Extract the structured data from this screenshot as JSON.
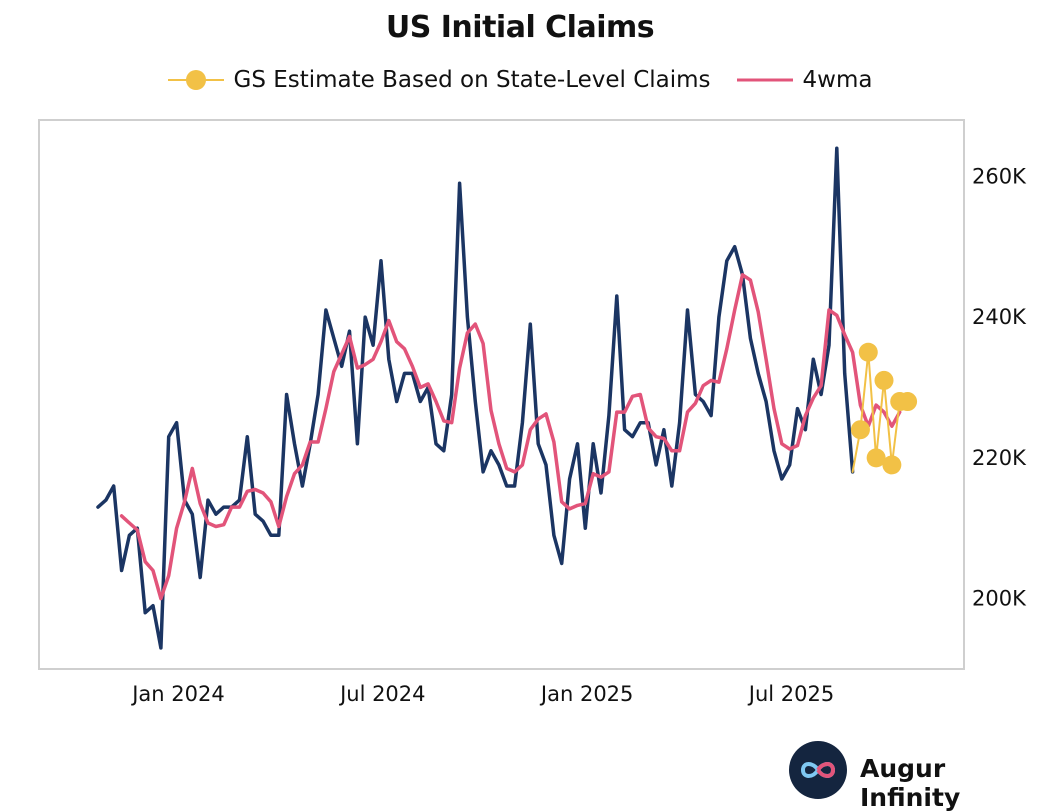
{
  "title": "US Initial Claims",
  "brand": {
    "name": "Augur Infinity",
    "icon": "infinity-logo-icon"
  },
  "chart_data": {
    "type": "line",
    "title": "US Initial Claims",
    "legend": [
      "GS Estimate Based on State-Level Claims",
      "4wma"
    ],
    "legend_placement": "top-center",
    "x_ticks": [
      "Jan 2024",
      "Jul 2024",
      "Jan 2025",
      "Jul 2025"
    ],
    "x_tick_weeks": [
      4,
      30,
      56,
      82
    ],
    "y_ticks": [
      "200K",
      "220K",
      "240K",
      "260K"
    ],
    "y_tick_values": [
      200000,
      220000,
      240000,
      260000
    ],
    "ylim": [
      190000,
      268000
    ],
    "y_axis_side": "right",
    "grid": false,
    "colors": {
      "actual": "#1b3563",
      "wma": "#e2547a",
      "estimate": "#f2c146"
    },
    "week_start": "2023-12-02",
    "series": [
      {
        "role": "actual",
        "color": "#1b3563",
        "values": [
          213000,
          214000,
          216000,
          204000,
          209000,
          210000,
          198000,
          199000,
          193000,
          223000,
          225000,
          214000,
          212000,
          203000,
          214000,
          212000,
          213000,
          213000,
          214000,
          223000,
          212000,
          211000,
          209000,
          209000,
          229000,
          222000,
          216000,
          222000,
          229000,
          241000,
          237000,
          233000,
          238000,
          222000,
          240000,
          236000,
          248000,
          234000,
          228000,
          232000,
          232000,
          228000,
          230000,
          222000,
          221000,
          229000,
          259000,
          240000,
          228000,
          218000,
          221000,
          219000,
          216000,
          216000,
          225000,
          239000,
          222000,
          219000,
          209000,
          205000,
          217000,
          222000,
          210000,
          222000,
          215000,
          226000,
          243000,
          224000,
          223000,
          225000,
          225000,
          219000,
          224000,
          216000,
          225000,
          241000,
          229000,
          228000,
          226000,
          240000,
          248000,
          250000,
          246000,
          237000,
          232000,
          228000,
          221000,
          217000,
          219000,
          227000,
          224000,
          234000,
          229000,
          236000,
          264000,
          232000,
          218000
        ]
      },
      {
        "role": "wma",
        "name": "4wma",
        "color": "#e2547a",
        "values": [
          null,
          null,
          null,
          211750,
          210750,
          209750,
          205250,
          204000,
          200000,
          203250,
          210000,
          213750,
          218500,
          213500,
          210750,
          210250,
          210500,
          213000,
          213000,
          215250,
          215500,
          215000,
          213750,
          210250,
          214500,
          217750,
          219000,
          222250,
          222250,
          227000,
          232250,
          234750,
          237250,
          232750,
          233250,
          234000,
          236500,
          239500,
          236500,
          235500,
          233000,
          230000,
          230500,
          228000,
          225250,
          225000,
          232750,
          237750,
          239000,
          236250,
          226750,
          222000,
          218500,
          218000,
          219000,
          224000,
          225500,
          226250,
          222250,
          213750,
          212750,
          213250,
          213500,
          217750,
          217250,
          218000,
          226500,
          226500,
          228750,
          229000,
          224250,
          223000,
          222750,
          221000,
          221000,
          226500,
          227750,
          230250,
          231000,
          230750,
          235500,
          241000,
          246000,
          245250,
          240750,
          234000,
          227000,
          222000,
          221250,
          221750,
          226000,
          228500,
          230250,
          241000,
          240250,
          237500,
          235000,
          227500,
          224500,
          227500,
          226500,
          224500,
          226500
        ]
      },
      {
        "role": "estimate",
        "name": "GS Estimate Based on State-Level Claims",
        "color": "#f2c146",
        "start_week": 96,
        "values": [
          218000,
          224000,
          235000,
          220000,
          231000,
          219000,
          228000,
          228000
        ]
      }
    ]
  }
}
